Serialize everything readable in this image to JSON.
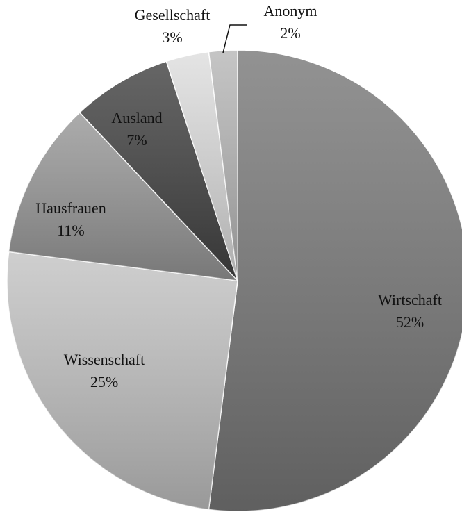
{
  "chart_data": {
    "type": "pie",
    "categories": [
      "Wirtschaft",
      "Wissenschaft",
      "Hausfrauen",
      "Ausland",
      "Gesellschaft",
      "Anonym"
    ],
    "values": [
      52,
      25,
      11,
      7,
      3,
      2
    ],
    "value_labels": [
      "52%",
      "25%",
      "11%",
      "7%",
      "3%",
      "2%"
    ],
    "colors": [
      "#7a7a7a",
      "#c4c4c4",
      "#999999",
      "#444444",
      "#dedede",
      "#b8b8b8"
    ]
  }
}
